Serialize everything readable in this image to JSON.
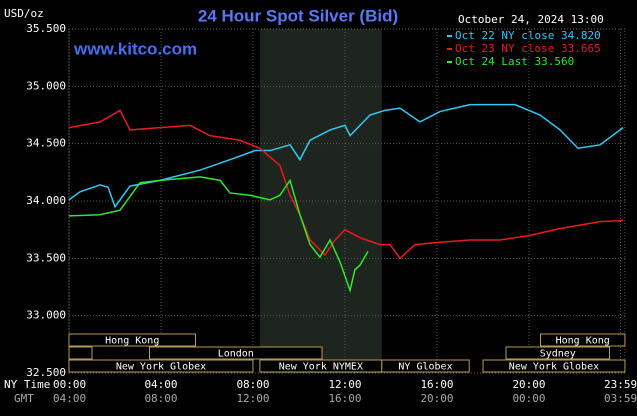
{
  "chart_data": {
    "type": "line",
    "title": "24 Hour Spot Silver (Bid)",
    "date_label": "October 24, 2024 13:00",
    "y_unit_label": "USD/oz",
    "watermark": "www.kitco.com",
    "x_axis_label": "NY Time",
    "x2_axis_label": "GMT",
    "xlim": [
      0,
      24.17
    ],
    "ylim": [
      32.5,
      35.5
    ],
    "yticks": [
      {
        "value": 32.5,
        "label": "32.500"
      },
      {
        "value": 33,
        "label": "33.000"
      },
      {
        "value": 33.5,
        "label": "33.500"
      },
      {
        "value": 34,
        "label": "34.000"
      },
      {
        "value": 34.5,
        "label": "34.500"
      },
      {
        "value": 35,
        "label": "35.000"
      },
      {
        "value": 35.5,
        "label": "35.500"
      }
    ],
    "xticks": [
      {
        "value": 0,
        "label": "00:00"
      },
      {
        "value": 4,
        "label": "04:00"
      },
      {
        "value": 8,
        "label": "08:00"
      },
      {
        "value": 12,
        "label": "12:00"
      },
      {
        "value": 16,
        "label": "16:00"
      },
      {
        "value": 20,
        "label": "20:00"
      },
      {
        "value": 23.98,
        "label": "23:59"
      }
    ],
    "x2ticks": [
      {
        "value": 0,
        "label": "04:00"
      },
      {
        "value": 4,
        "label": "08:00"
      },
      {
        "value": 8,
        "label": "12:00"
      },
      {
        "value": 12,
        "label": "16:00"
      },
      {
        "value": 16,
        "label": "20:00"
      },
      {
        "value": 20,
        "label": "00:00"
      },
      {
        "value": 23.98,
        "label": "03:59"
      }
    ],
    "grid": true,
    "shaded": [
      8.3,
      13.6
    ],
    "sessions": [
      {
        "label": "Hong Kong",
        "start": 0,
        "end": 5.5
      },
      {
        "label": "Hong Kong",
        "start": 20.5,
        "end": 24.17
      },
      {
        "label": null,
        "start": 0,
        "end": 1
      },
      {
        "label": "London",
        "start": 3.5,
        "end": 11
      },
      {
        "label": "Sydney",
        "start": 19,
        "end": 23.5
      },
      {
        "label": "New York Globex",
        "start": 0,
        "end": 8
      },
      {
        "label": "New York NYMEX",
        "start": 8.3,
        "end": 13.6
      },
      {
        "label": "NY Globex",
        "start": 13.6,
        "end": 17.4
      },
      {
        "label": "New York Globex",
        "start": 18,
        "end": 24.17
      }
    ],
    "series": [
      {
        "name": "Oct 22 NY close 34.820",
        "color": "#33c8f5",
        "x": [
          0,
          0.48,
          1.35,
          1.7,
          2,
          2.65,
          3.96,
          5.7,
          7,
          8.09,
          8.74,
          9.61,
          10.04,
          10.48,
          11.35,
          12,
          12.22,
          13.09,
          13.74,
          14.39,
          15.26,
          16.13,
          17.43,
          19.39,
          20.48,
          21.35,
          22.13,
          23.09,
          24.09
        ],
        "values": [
          34.01,
          34.08,
          34.14,
          34.12,
          33.95,
          34.13,
          34.18,
          34.27,
          34.36,
          34.44,
          34.44,
          34.49,
          34.36,
          34.53,
          34.62,
          34.66,
          34.57,
          34.75,
          34.79,
          34.81,
          34.69,
          34.78,
          34.84,
          34.84,
          34.75,
          34.62,
          34.46,
          34.49,
          34.64
        ]
      },
      {
        "name": "Oct 23 NY close 33.665",
        "color": "#e81c1c",
        "x": [
          0,
          1.35,
          2.22,
          2.65,
          3.96,
          5.26,
          6.13,
          7.43,
          8.3,
          9.17,
          9.61,
          10.04,
          10.48,
          11.13,
          11.57,
          12,
          12.65,
          13.52,
          13.96,
          14.39,
          15.04,
          16.13,
          17.43,
          18.74,
          20.04,
          21.35,
          22.22,
          23.09,
          24.09
        ],
        "values": [
          34.64,
          34.69,
          34.79,
          34.62,
          34.64,
          34.66,
          34.57,
          34.53,
          34.46,
          34.31,
          34.05,
          33.88,
          33.66,
          33.53,
          33.66,
          33.75,
          33.68,
          33.62,
          33.62,
          33.5,
          33.62,
          33.64,
          33.66,
          33.66,
          33.7,
          33.76,
          33.79,
          33.82,
          33.83
        ]
      },
      {
        "name": "Oct 24 Last 33.560",
        "color": "#2ee82e",
        "x": [
          0,
          1.35,
          2.22,
          3.09,
          3.96,
          5.7,
          6.57,
          7,
          7.87,
          8.74,
          9.17,
          9.61,
          10.04,
          10.48,
          10.91,
          11.35,
          11.78,
          12.22,
          12.43,
          12.65,
          13
        ],
        "values": [
          33.87,
          33.88,
          33.92,
          34.16,
          34.18,
          34.21,
          34.18,
          34.07,
          34.05,
          34.01,
          34.05,
          34.18,
          33.88,
          33.62,
          33.51,
          33.66,
          33.47,
          33.22,
          33.4,
          33.44,
          33.56
        ]
      }
    ]
  }
}
